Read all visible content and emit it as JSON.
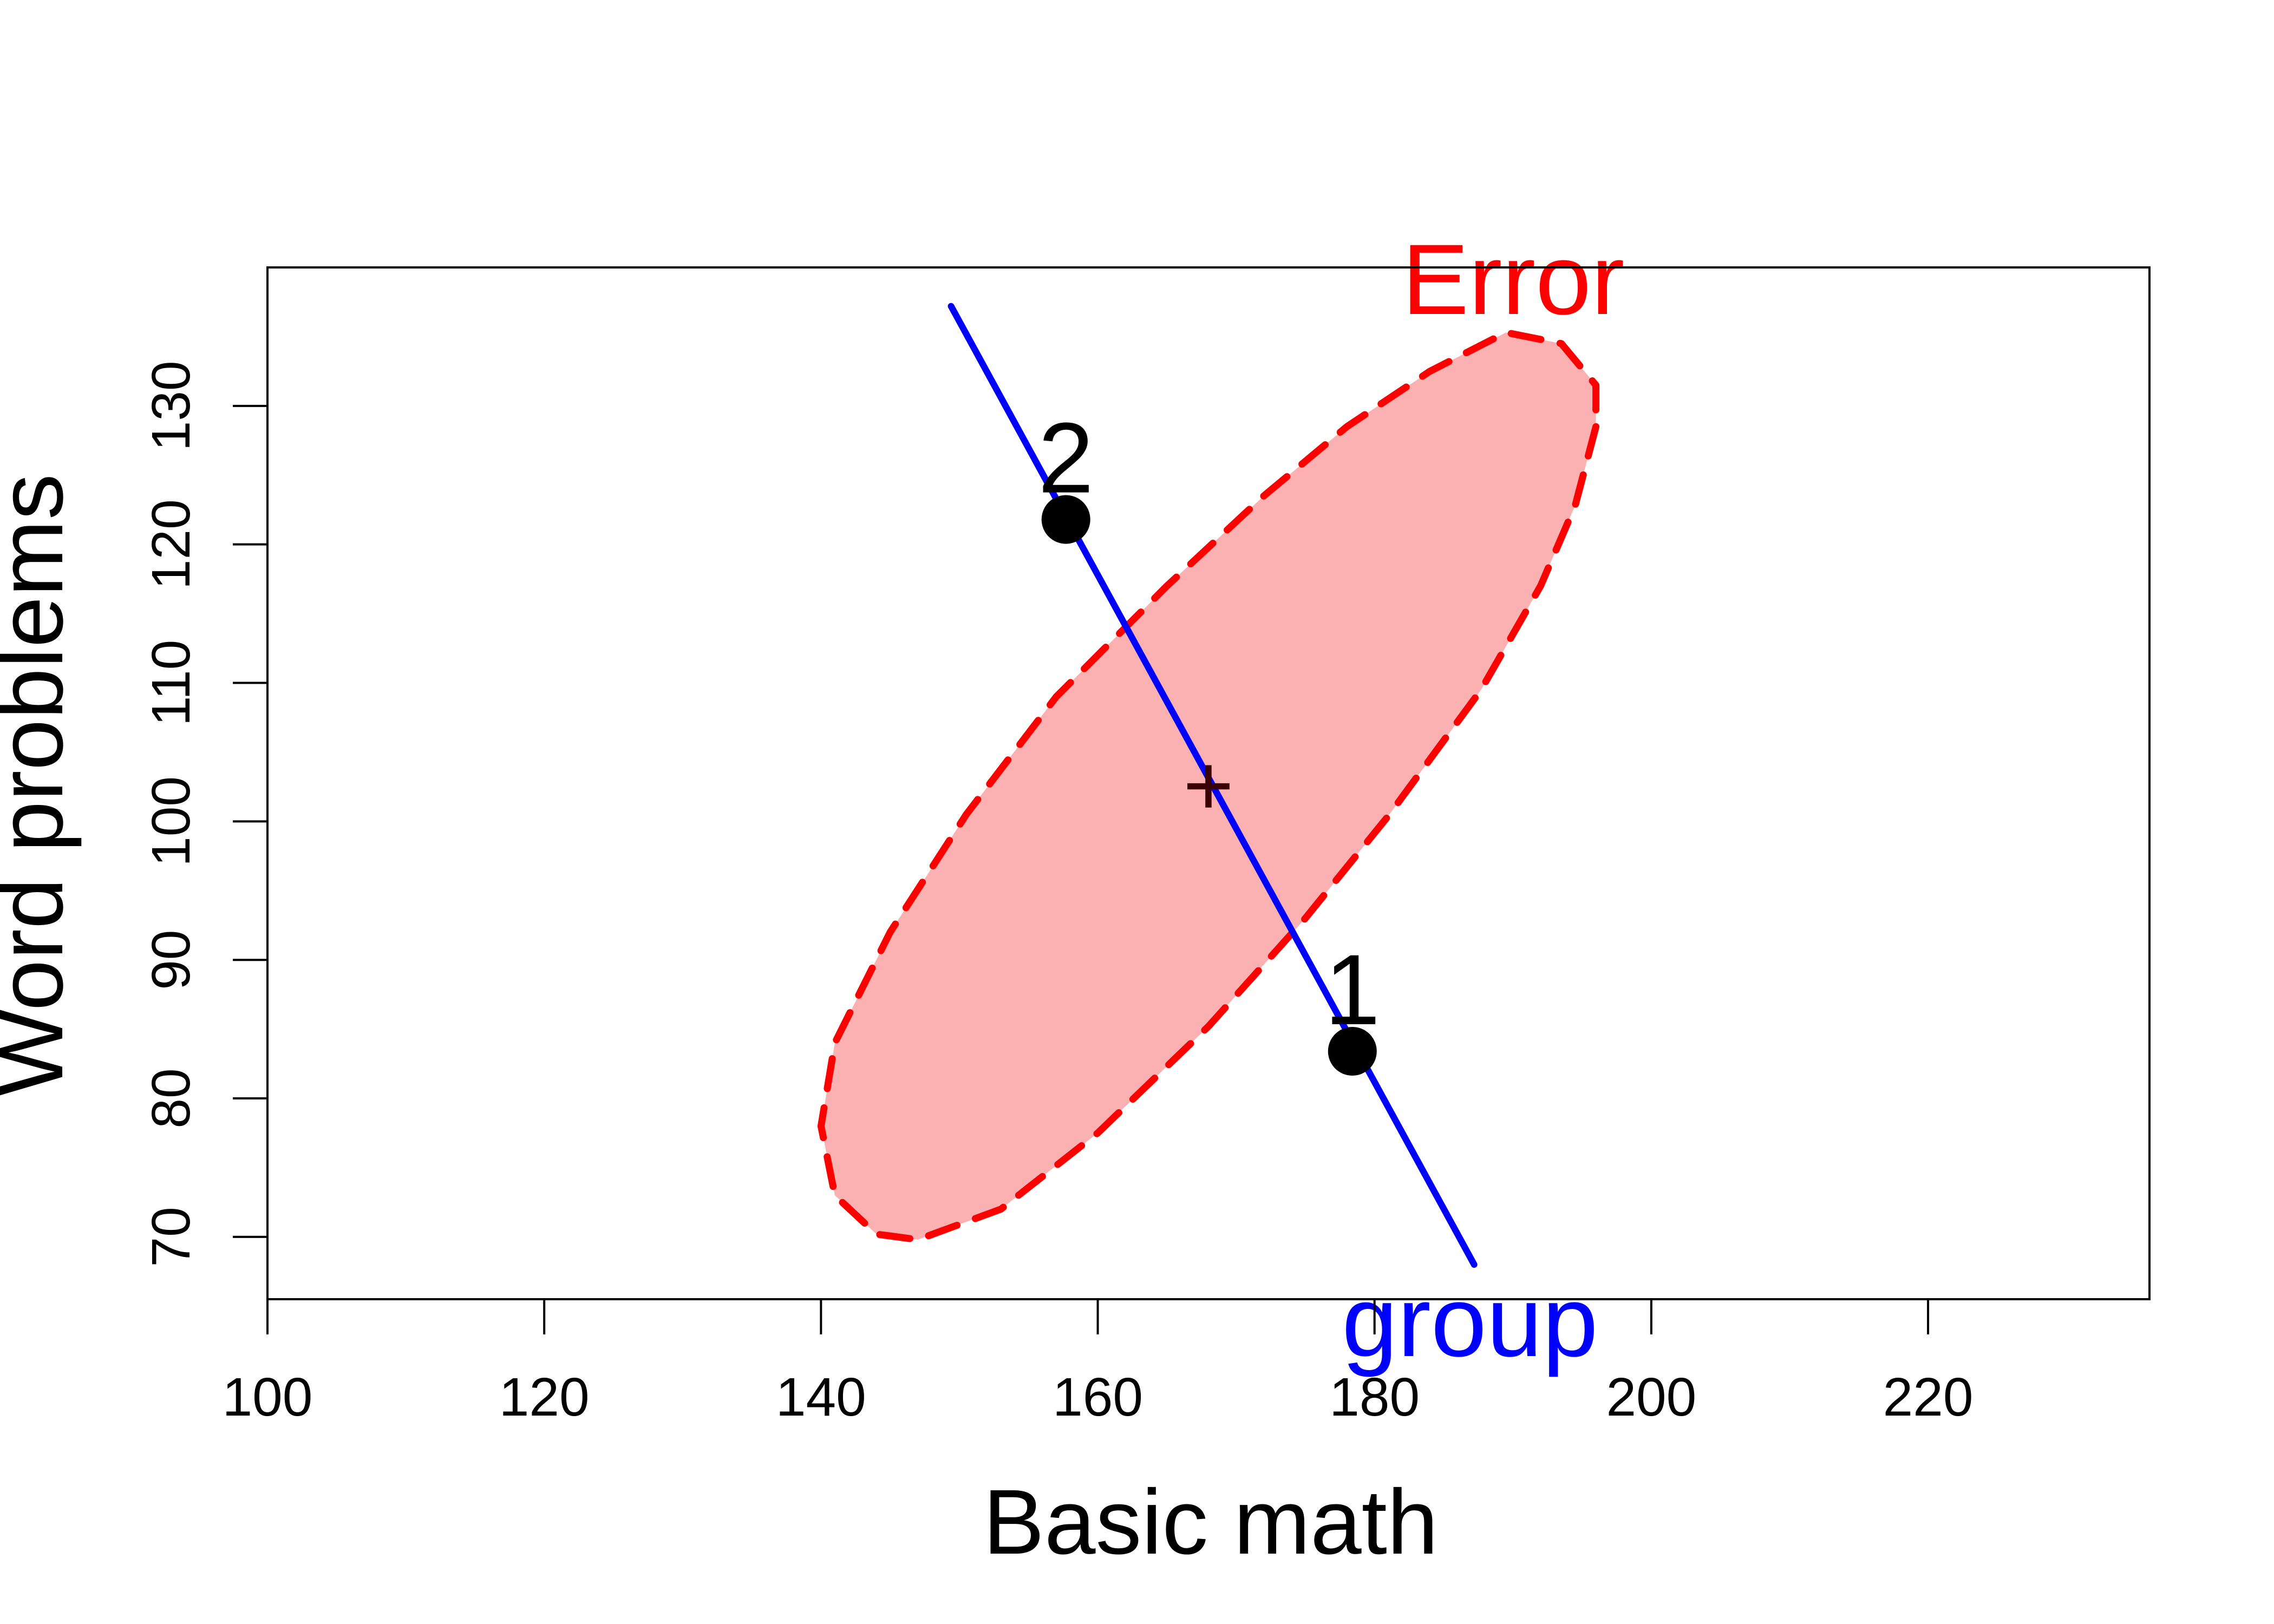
{
  "chart_data": {
    "type": "scatter",
    "title": "",
    "xlabel": "Basic math",
    "ylabel": "Word problems",
    "xlim": [
      100,
      236
    ],
    "ylim": [
      65.5,
      140
    ],
    "x_ticks": [
      100,
      120,
      140,
      160,
      180,
      200,
      220
    ],
    "y_ticks": [
      70,
      80,
      90,
      100,
      110,
      120,
      130
    ],
    "grid": false,
    "points": [
      {
        "label": "1",
        "x": 178.4,
        "y": 83.4
      },
      {
        "label": "2",
        "x": 157.7,
        "y": 121.8
      }
    ],
    "centroid": {
      "marker": "+",
      "x": 168.0,
      "y": 102.6
    },
    "ellipse": {
      "label": "Error",
      "center": [
        168.0,
        102.6
      ],
      "points": [
        [
          196.0,
          128.5
        ],
        [
          194.5,
          122.8
        ],
        [
          192.0,
          117.0
        ],
        [
          187.7,
          109.5
        ],
        [
          181.0,
          100.4
        ],
        [
          175.0,
          93.0
        ],
        [
          168.0,
          85.2
        ],
        [
          160.0,
          77.5
        ],
        [
          153.0,
          72.0
        ],
        [
          147.0,
          69.8
        ],
        [
          144.0,
          70.2
        ],
        [
          141.0,
          73.0
        ],
        [
          140.0,
          78.0
        ],
        [
          141.0,
          84.0
        ],
        [
          145.0,
          92.0
        ],
        [
          150.5,
          100.5
        ],
        [
          157.0,
          109.0
        ],
        [
          165.0,
          117.0
        ],
        [
          172.0,
          123.5
        ],
        [
          178.0,
          128.5
        ],
        [
          184.0,
          132.5
        ],
        [
          189.5,
          135.3
        ],
        [
          193.5,
          134.5
        ],
        [
          196.0,
          131.5
        ]
      ],
      "fill": "#fbb1b1",
      "stroke": "#ff0000",
      "label_color": "#ff0000"
    },
    "line": {
      "label": "group",
      "from": [
        149.4,
        137.2
      ],
      "to": [
        187.2,
        68.0
      ],
      "color": "#0000ff"
    },
    "colors": {
      "points": "#000000",
      "axes": "#000000"
    }
  }
}
